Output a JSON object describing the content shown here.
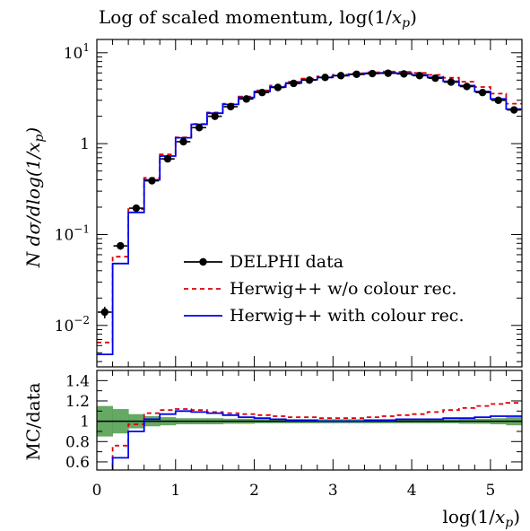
{
  "title": "Log of scaled momentum, log(1/x_p)",
  "chart_data": [
    {
      "type": "line",
      "panel": "main",
      "title": "Log of scaled momentum, log(1/x_p)",
      "ylabel": "N dσ/dlog(1/x_p)",
      "yscale": "log",
      "ylim": [
        0.0035,
        14
      ],
      "xlim": [
        0,
        5.4
      ],
      "y_tick_labels": [
        "10^{-2}",
        "10^{-1}",
        "1",
        "10^{1}"
      ],
      "y_tick_values": [
        0.01,
        0.1,
        1,
        10
      ],
      "legend_position": "center-right",
      "bin_edges": [
        0,
        0.2,
        0.4,
        0.6,
        0.8,
        1.0,
        1.2,
        1.4,
        1.6,
        1.8,
        2.0,
        2.2,
        2.4,
        2.6,
        2.8,
        3.0,
        3.2,
        3.4,
        3.6,
        3.8,
        4.0,
        4.2,
        4.4,
        4.6,
        4.8,
        5.0,
        5.2,
        5.4
      ],
      "series": [
        {
          "name": "DELPHI data",
          "style": "points",
          "color": "#000000",
          "x": [
            0.1,
            0.3,
            0.5,
            0.7,
            0.9,
            1.1,
            1.3,
            1.5,
            1.7,
            1.9,
            2.1,
            2.3,
            2.5,
            2.7,
            2.9,
            3.1,
            3.3,
            3.5,
            3.7,
            3.9,
            4.1,
            4.3,
            4.5,
            4.7,
            4.9,
            5.1,
            5.3
          ],
          "values": [
            0.014,
            0.075,
            0.195,
            0.39,
            0.68,
            1.05,
            1.5,
            2.0,
            2.55,
            3.1,
            3.65,
            4.15,
            4.6,
            5.0,
            5.35,
            5.6,
            5.8,
            5.9,
            5.95,
            5.85,
            5.6,
            5.25,
            4.75,
            4.25,
            3.65,
            3.0,
            2.35
          ],
          "yerr_low": [
            0.012,
            0.068,
            0.185,
            0.37,
            0.65,
            1.0,
            1.45,
            1.94,
            2.47,
            3.0,
            3.55,
            4.05,
            4.5,
            4.9,
            5.25,
            5.5,
            5.7,
            5.8,
            5.85,
            5.75,
            5.5,
            5.15,
            4.65,
            4.15,
            3.55,
            2.9,
            2.25
          ],
          "yerr_high": [
            0.016,
            0.082,
            0.205,
            0.41,
            0.71,
            1.1,
            1.55,
            2.06,
            2.63,
            3.2,
            3.75,
            4.25,
            4.7,
            5.1,
            5.45,
            5.7,
            5.9,
            6.0,
            6.05,
            5.95,
            5.7,
            5.35,
            4.85,
            4.35,
            3.75,
            3.1,
            2.45
          ]
        },
        {
          "name": "Herwig++ w/o colour rec.",
          "style": "histogram-dashed",
          "color": "#dd0000",
          "values": [
            0.0065,
            0.057,
            0.19,
            0.42,
            0.76,
            1.17,
            1.65,
            2.2,
            2.75,
            3.3,
            3.85,
            4.35,
            4.8,
            5.2,
            5.5,
            5.75,
            5.95,
            6.1,
            6.2,
            6.15,
            6.0,
            5.7,
            5.3,
            4.8,
            4.2,
            3.55,
            2.75
          ]
        },
        {
          "name": "Herwig++ with colour rec.",
          "style": "histogram",
          "color": "#0000ee",
          "values": [
            0.0048,
            0.048,
            0.175,
            0.4,
            0.73,
            1.16,
            1.63,
            2.16,
            2.7,
            3.22,
            3.75,
            4.2,
            4.65,
            5.05,
            5.35,
            5.6,
            5.8,
            5.95,
            6.0,
            5.95,
            5.7,
            5.35,
            4.85,
            4.35,
            3.75,
            3.1,
            2.4
          ]
        }
      ]
    },
    {
      "type": "line",
      "panel": "ratio",
      "ylabel": "MC/data",
      "xlabel": "log(1/x_p)",
      "ylim": [
        0.52,
        1.5
      ],
      "xlim": [
        0,
        5.4
      ],
      "y_tick_labels": [
        "0.6",
        "0.8",
        "1",
        "1.2",
        "1.4"
      ],
      "y_tick_values": [
        0.6,
        0.8,
        1.0,
        1.2,
        1.4
      ],
      "x_tick_labels": [
        "0",
        "1",
        "2",
        "3",
        "4",
        "5"
      ],
      "x_tick_values": [
        0,
        1,
        2,
        3,
        4,
        5
      ],
      "band_color": "#4a9a4a",
      "band_half_width": [
        0.15,
        0.12,
        0.07,
        0.05,
        0.04,
        0.03,
        0.03,
        0.03,
        0.025,
        0.025,
        0.02,
        0.02,
        0.02,
        0.02,
        0.02,
        0.02,
        0.02,
        0.02,
        0.02,
        0.02,
        0.02,
        0.02,
        0.02,
        0.025,
        0.025,
        0.03,
        0.04
      ],
      "series": [
        {
          "name": "Herwig++ w/o colour rec.",
          "color": "#dd0000",
          "values": [
            0.46,
            0.76,
            0.97,
            1.08,
            1.11,
            1.12,
            1.11,
            1.09,
            1.08,
            1.07,
            1.06,
            1.05,
            1.04,
            1.04,
            1.03,
            1.03,
            1.03,
            1.04,
            1.05,
            1.06,
            1.07,
            1.09,
            1.11,
            1.13,
            1.15,
            1.17,
            1.18
          ]
        },
        {
          "name": "Herwig++ with colour rec.",
          "color": "#0000ee",
          "values": [
            0.34,
            0.64,
            0.9,
            1.02,
            1.07,
            1.1,
            1.09,
            1.08,
            1.06,
            1.04,
            1.03,
            1.02,
            1.01,
            1.01,
            1.0,
            1.0,
            1.0,
            1.01,
            1.01,
            1.02,
            1.02,
            1.02,
            1.03,
            1.03,
            1.04,
            1.05,
            1.05
          ]
        }
      ]
    }
  ]
}
